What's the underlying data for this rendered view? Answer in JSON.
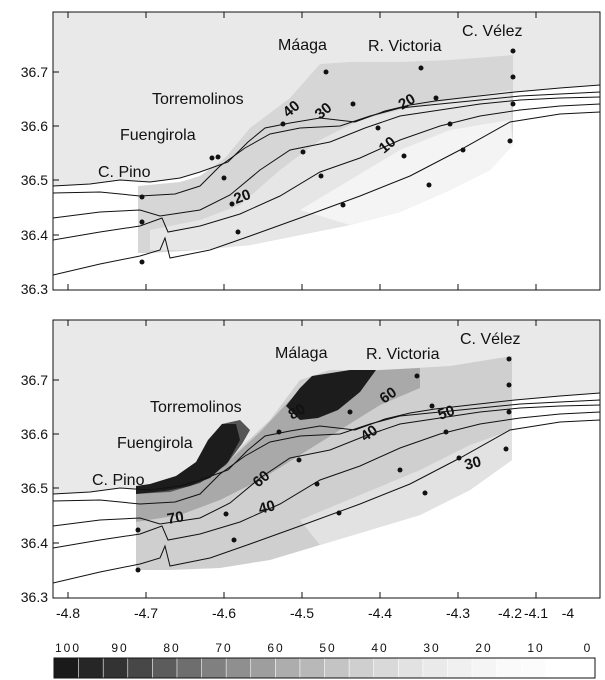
{
  "panels": [
    {
      "places": [
        {
          "text": "Máaga",
          "id": "malaga"
        },
        {
          "text": "R. Victoria",
          "id": "rvictoria"
        },
        {
          "text": "C. Vélez",
          "id": "cvelez"
        },
        {
          "text": "Torremolinos",
          "id": "torremolinos"
        },
        {
          "text": "Fuengirola",
          "id": "fuengirola"
        },
        {
          "text": "C. Pino",
          "id": "cpino"
        }
      ],
      "contour_labels": [
        "40",
        "30",
        "20",
        "10",
        "20"
      ],
      "y_ticks": [
        "36.7",
        "36.6",
        "36.5",
        "36.4",
        "36.3"
      ]
    },
    {
      "places": [
        {
          "text": "Málaga",
          "id": "malaga"
        },
        {
          "text": "R. Victoria",
          "id": "rvictoria"
        },
        {
          "text": "C. Vélez",
          "id": "cvelez"
        },
        {
          "text": "Torremolinos",
          "id": "torremolinos"
        },
        {
          "text": "Fuengirola",
          "id": "fuengirola"
        },
        {
          "text": "C. Pino",
          "id": "cpino"
        }
      ],
      "contour_labels": [
        "80",
        "60",
        "50",
        "40",
        "60",
        "70",
        "40",
        "30"
      ],
      "y_ticks": [
        "36.7",
        "36.6",
        "36.5",
        "36.4",
        "36.3"
      ]
    }
  ],
  "x_ticks": [
    "-4.8",
    "-4.7",
    "-4.6",
    "-4.5",
    "-4.4",
    "-4.3",
    "-4.2",
    "-4.1",
    "-4"
  ],
  "colorbar": {
    "labels": [
      "100",
      "90",
      "80",
      "70",
      "60",
      "50",
      "40",
      "30",
      "20",
      "10",
      "0"
    ],
    "colors": [
      "#1a1a1a",
      "#262626",
      "#333333",
      "#474747",
      "#5c5c5c",
      "#6e6e6e",
      "#808080",
      "#8f8f8f",
      "#9e9e9e",
      "#adadad",
      "#b8b8b8",
      "#c4c4c4",
      "#cfcfcf",
      "#d9d9d9",
      "#e2e2e2",
      "#eaeaea",
      "#f0f0f0",
      "#f5f5f5",
      "#fafafa",
      "#fcfcfc",
      "#ffffff",
      "#ffffff"
    ]
  }
}
